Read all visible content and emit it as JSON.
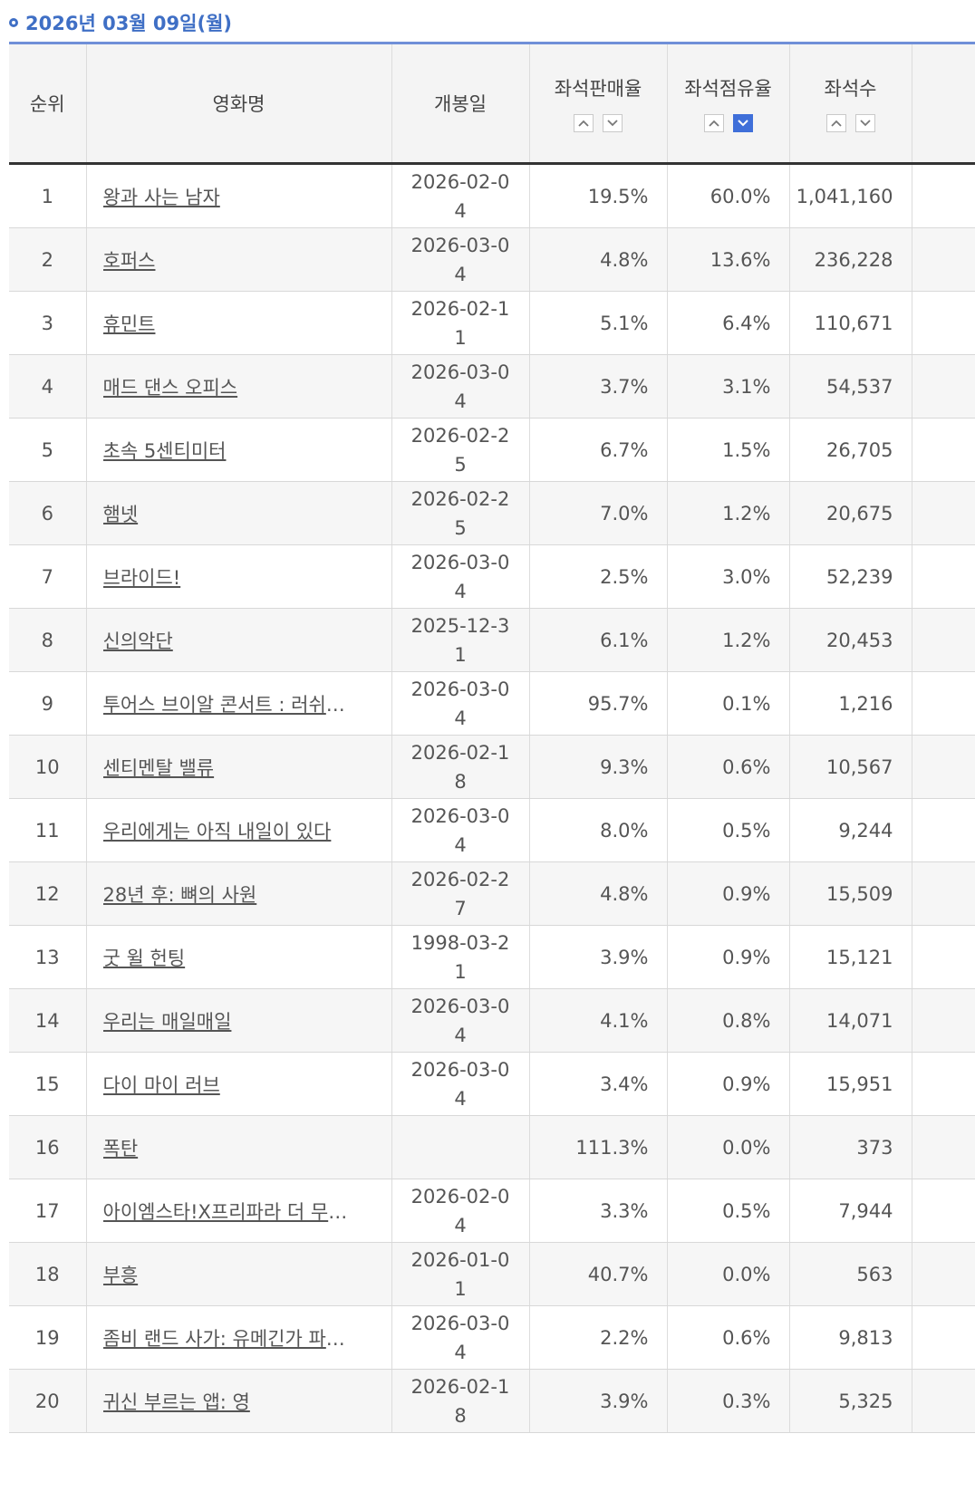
{
  "header": {
    "date": "2026년 03월 09일(월)"
  },
  "columns": {
    "rank": "순위",
    "title": "영화명",
    "release": "개봉일",
    "sales_rate": "좌석판매율",
    "share_rate": "좌석점유율",
    "seats": "좌석수"
  },
  "sort_state": {
    "active": "share_rate-desc",
    "active_color": "#3f6fd9"
  },
  "rows": [
    {
      "rank": "1",
      "title": "왕과 사는 남자",
      "release": "2026-02-04",
      "sales": "19.5%",
      "share": "60.0%",
      "seats": "1,041,160"
    },
    {
      "rank": "2",
      "title": "호퍼스",
      "release": "2026-03-04",
      "sales": "4.8%",
      "share": "13.6%",
      "seats": "236,228"
    },
    {
      "rank": "3",
      "title": "휴민트",
      "release": "2026-02-11",
      "sales": "5.1%",
      "share": "6.4%",
      "seats": "110,671"
    },
    {
      "rank": "4",
      "title": "매드 댄스 오피스",
      "release": "2026-03-04",
      "sales": "3.7%",
      "share": "3.1%",
      "seats": "54,537"
    },
    {
      "rank": "5",
      "title": "초속 5센티미터",
      "release": "2026-02-25",
      "sales": "6.7%",
      "share": "1.5%",
      "seats": "26,705"
    },
    {
      "rank": "6",
      "title": "햄넷",
      "release": "2026-02-25",
      "sales": "7.0%",
      "share": "1.2%",
      "seats": "20,675"
    },
    {
      "rank": "7",
      "title": "브라이드!",
      "release": "2026-03-04",
      "sales": "2.5%",
      "share": "3.0%",
      "seats": "52,239"
    },
    {
      "rank": "8",
      "title": "신의악단",
      "release": "2025-12-31",
      "sales": "6.1%",
      "share": "1.2%",
      "seats": "20,453"
    },
    {
      "rank": "9",
      "title": "투어스 브이알 콘서트 : 러쉬로드",
      "release": "2026-03-04",
      "sales": "95.7%",
      "share": "0.1%",
      "seats": "1,216"
    },
    {
      "rank": "10",
      "title": "센티멘탈 밸류",
      "release": "2026-02-18",
      "sales": "9.3%",
      "share": "0.6%",
      "seats": "10,567"
    },
    {
      "rank": "11",
      "title": "우리에게는 아직 내일이 있다",
      "release": "2026-03-04",
      "sales": "8.0%",
      "share": "0.5%",
      "seats": "9,244"
    },
    {
      "rank": "12",
      "title": "28년 후: 뼈의 사원",
      "release": "2026-02-27",
      "sales": "4.8%",
      "share": "0.9%",
      "seats": "15,509"
    },
    {
      "rank": "13",
      "title": "굿 윌 헌팅",
      "release": "1998-03-21",
      "sales": "3.9%",
      "share": "0.9%",
      "seats": "15,121"
    },
    {
      "rank": "14",
      "title": "우리는 매일매일",
      "release": "2026-03-04",
      "sales": "4.1%",
      "share": "0.8%",
      "seats": "14,071"
    },
    {
      "rank": "15",
      "title": "다이 마이 러브",
      "release": "2026-03-04",
      "sales": "3.4%",
      "share": "0.9%",
      "seats": "15,951"
    },
    {
      "rank": "16",
      "title": "폭탄",
      "release": "",
      "sales": "111.3%",
      "share": "0.0%",
      "seats": "373"
    },
    {
      "rank": "17",
      "title": "아이엠스타!X프리파라 더 무비 …",
      "release": "2026-02-04",
      "sales": "3.3%",
      "share": "0.5%",
      "seats": "7,944"
    },
    {
      "rank": "18",
      "title": "부흥",
      "release": "2026-01-01",
      "sales": "40.7%",
      "share": "0.0%",
      "seats": "563"
    },
    {
      "rank": "19",
      "title": "좀비 랜드 사가: 유메긴가 파라…",
      "release": "2026-03-04",
      "sales": "2.2%",
      "share": "0.6%",
      "seats": "9,813"
    },
    {
      "rank": "20",
      "title": "귀신 부르는 앱: 영",
      "release": "2026-02-18",
      "sales": "3.9%",
      "share": "0.3%",
      "seats": "5,325"
    }
  ]
}
